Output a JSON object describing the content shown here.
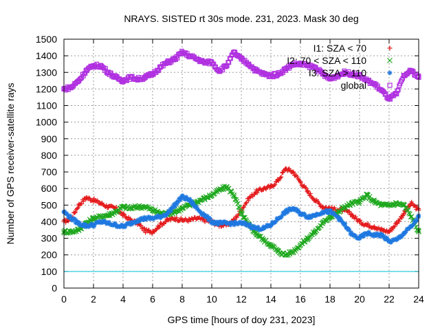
{
  "chart_data": {
    "type": "scatter",
    "title": "NRAYS. SISTED rt 30s mode. 231, 2023. Mask 30 deg",
    "xlabel": "GPS time [hours of doy 231, 2023]",
    "ylabel": "Number of GPS receiver-satellite rays",
    "xlim": [
      0,
      24
    ],
    "ylim": [
      0,
      1500
    ],
    "xticks": [
      "0",
      "2",
      "4",
      "6",
      "8",
      "10",
      "12",
      "14",
      "16",
      "18",
      "20",
      "22",
      "24"
    ],
    "yticks": [
      "0",
      "100",
      "200",
      "300",
      "400",
      "500",
      "600",
      "700",
      "800",
      "900",
      "1000",
      "1100",
      "1200",
      "1300",
      "1400",
      "1500"
    ],
    "grid": true,
    "legend_position": "top-right",
    "threshold_line": {
      "y": 100,
      "color": "#00c8d8"
    },
    "series": [
      {
        "name": "I1: SZA < 70",
        "marker": "+",
        "color": "#e41a1c",
        "x": [
          0,
          0.5,
          1,
          1.5,
          2,
          2.5,
          3,
          3.5,
          4,
          4.5,
          5,
          5.5,
          6,
          6.5,
          7,
          7.5,
          8,
          8.5,
          9,
          9.5,
          10,
          10.5,
          11,
          11.5,
          12,
          12.5,
          13,
          13.5,
          14,
          14.5,
          15,
          15.5,
          16,
          16.5,
          17,
          17.5,
          18,
          18.5,
          19,
          19.5,
          20,
          20.5,
          21,
          21.5,
          22,
          22.5,
          23,
          23.5,
          24
        ],
        "y": [
          400,
          420,
          500,
          545,
          530,
          510,
          490,
          480,
          440,
          410,
          390,
          345,
          340,
          380,
          410,
          420,
          410,
          410,
          420,
          410,
          400,
          380,
          380,
          410,
          470,
          540,
          580,
          600,
          610,
          650,
          720,
          700,
          640,
          580,
          530,
          490,
          480,
          470,
          470,
          440,
          400,
          380,
          370,
          350,
          340,
          390,
          450,
          510,
          470
        ]
      },
      {
        "name": "I2: 70 < SZA < 110",
        "marker": "x",
        "color": "#1ea81e",
        "x": [
          0,
          0.5,
          1,
          1.5,
          2,
          2.5,
          3,
          3.5,
          4,
          4.5,
          5,
          5.5,
          6,
          6.5,
          7,
          7.5,
          8,
          8.5,
          9,
          9.5,
          10,
          10.5,
          11,
          11.5,
          12,
          12.5,
          13,
          13.5,
          14,
          14.5,
          15,
          15.5,
          16,
          16.5,
          17,
          17.5,
          18,
          18.5,
          19,
          19.5,
          20,
          20.5,
          21,
          21.5,
          22,
          22.5,
          23,
          23.5,
          24
        ],
        "y": [
          340,
          340,
          350,
          390,
          420,
          430,
          440,
          460,
          490,
          480,
          490,
          490,
          470,
          450,
          450,
          460,
          480,
          500,
          520,
          540,
          560,
          590,
          610,
          560,
          450,
          380,
          330,
          290,
          260,
          220,
          200,
          220,
          260,
          300,
          340,
          390,
          430,
          450,
          490,
          510,
          520,
          560,
          520,
          500,
          500,
          510,
          500,
          430,
          340
        ]
      },
      {
        "name": "I3: SZA > 110",
        "marker": "*",
        "color": "#1f78e0",
        "x": [
          0,
          0.5,
          1,
          1.5,
          2,
          2.5,
          3,
          3.5,
          4,
          4.5,
          5,
          5.5,
          6,
          6.5,
          7,
          7.5,
          8,
          8.5,
          9,
          9.5,
          10,
          10.5,
          11,
          11.5,
          12,
          12.5,
          13,
          13.5,
          14,
          14.5,
          15,
          15.5,
          16,
          16.5,
          17,
          17.5,
          18,
          18.5,
          19,
          19.5,
          20,
          20.5,
          21,
          21.5,
          22,
          22.5,
          23,
          23.5,
          24
        ],
        "y": [
          460,
          420,
          390,
          375,
          380,
          400,
          390,
          380,
          370,
          390,
          410,
          420,
          420,
          430,
          450,
          500,
          550,
          530,
          480,
          440,
          400,
          390,
          390,
          390,
          390,
          380,
          360,
          360,
          380,
          420,
          460,
          480,
          450,
          430,
          440,
          460,
          460,
          430,
          380,
          320,
          300,
          330,
          320,
          320,
          280,
          290,
          330,
          370,
          430
        ]
      },
      {
        "name": "global",
        "marker": "square",
        "color": "#b030e0",
        "x": [
          0,
          0.5,
          1,
          1.5,
          2,
          2.5,
          3,
          3.5,
          4,
          4.5,
          5,
          5.5,
          6,
          6.5,
          7,
          7.5,
          8,
          8.5,
          9,
          9.5,
          10,
          10.5,
          11,
          11.5,
          12,
          12.5,
          13,
          13.5,
          14,
          14.5,
          15,
          15.5,
          16,
          16.5,
          17,
          17.5,
          18,
          18.5,
          19,
          19.5,
          20,
          20.5,
          21,
          21.5,
          22,
          22.5,
          23,
          23.5,
          24
        ],
        "y": [
          1200,
          1210,
          1250,
          1310,
          1340,
          1340,
          1300,
          1270,
          1250,
          1270,
          1260,
          1270,
          1290,
          1330,
          1360,
          1380,
          1420,
          1400,
          1380,
          1360,
          1360,
          1310,
          1340,
          1420,
          1380,
          1350,
          1310,
          1290,
          1280,
          1290,
          1320,
          1350,
          1350,
          1340,
          1330,
          1290,
          1260,
          1280,
          1300,
          1290,
          1280,
          1250,
          1230,
          1190,
          1140,
          1170,
          1280,
          1310,
          1270
        ]
      }
    ]
  }
}
